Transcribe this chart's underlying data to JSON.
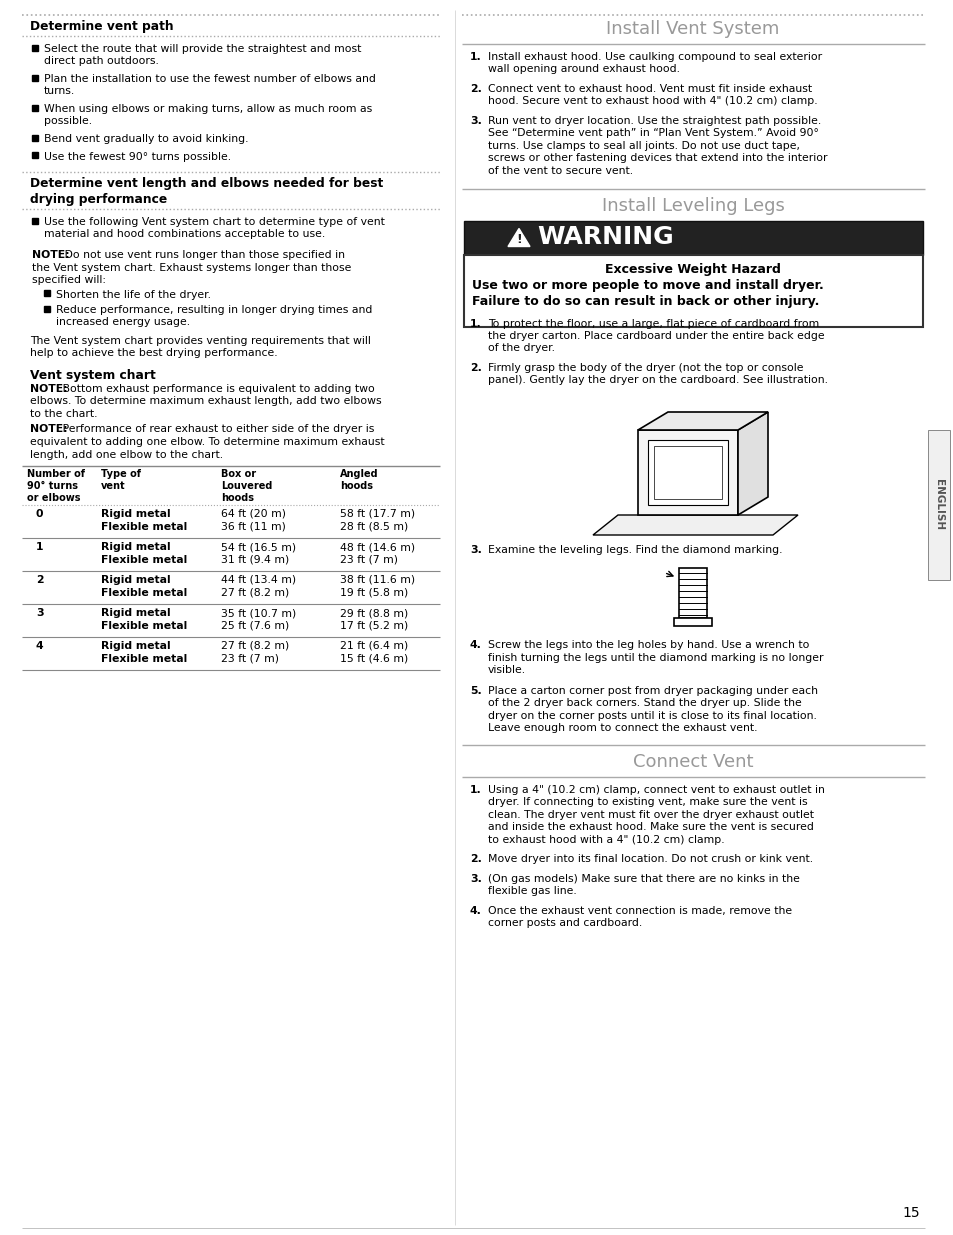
{
  "page_bg": "#ffffff",
  "page_num": "15",
  "left_col": {
    "section1_title": "Determine vent path",
    "section1_bullets": [
      "Select the route that will provide the straightest and most\ndirect path outdoors.",
      "Plan the installation to use the fewest number of elbows and\nturns.",
      "When using elbows or making turns, allow as much room as\npossible.",
      "Bend vent gradually to avoid kinking.",
      "Use the fewest 90° turns possible."
    ],
    "section2_title": "Determine vent length and elbows needed for best\ndrying performance",
    "section2_bullet": "Use the following Vent system chart to determine type of vent\nmaterial and hood combinations acceptable to use.",
    "note1_sub_bullets": [
      "Shorten the life of the dryer.",
      "Reduce performance, resulting in longer drying times and\nincreased energy usage."
    ],
    "para1": "The Vent system chart provides venting requirements that will\nhelp to achieve the best drying performance.",
    "section3_title": "Vent system chart",
    "table_headers": [
      "Number of\n90° turns\nor elbows",
      "Type of\nvent",
      "Box or\nLouvered\nhoods",
      "Angled\nhoods"
    ],
    "table_rows": [
      [
        "0",
        "Rigid metal\nFlexible metal",
        "64 ft (20 m)\n36 ft (11 m)",
        "58 ft (17.7 m)\n28 ft (8.5 m)"
      ],
      [
        "1",
        "Rigid metal\nFlexible metal",
        "54 ft (16.5 m)\n31 ft (9.4 m)",
        "48 ft (14.6 m)\n23 ft (7 m)"
      ],
      [
        "2",
        "Rigid metal\nFlexible metal",
        "44 ft (13.4 m)\n27 ft (8.2 m)",
        "38 ft (11.6 m)\n19 ft (5.8 m)"
      ],
      [
        "3",
        "Rigid metal\nFlexible metal",
        "35 ft (10.7 m)\n25 ft (7.6 m)",
        "29 ft (8.8 m)\n17 ft (5.2 m)"
      ],
      [
        "4",
        "Rigid metal\nFlexible metal",
        "27 ft (8.2 m)\n23 ft (7 m)",
        "21 ft (6.4 m)\n15 ft (4.6 m)"
      ]
    ]
  },
  "right_col": {
    "install_vent_title": "Install Vent System",
    "install_vent_steps": [
      [
        "1.",
        "Install exhaust hood. Use caulking compound to seal exterior\nwall opening around exhaust hood."
      ],
      [
        "2.",
        "Connect vent to exhaust hood. Vent must fit inside exhaust\nhood. Secure vent to exhaust hood with 4\" (10.2 cm) clamp."
      ],
      [
        "3.",
        "Run vent to dryer location. Use the straightest path possible.\nSee “Determine vent path” in “Plan Vent System.” Avoid 90°\nturns. Use clamps to seal all joints. Do not use duct tape,\nscrews or other fastening devices that extend into the interior\nof the vent to secure vent."
      ]
    ],
    "install_leveling_title": "Install Leveling Legs",
    "warning_bold1": "Excessive Weight Hazard",
    "warning_bold2": "Use two or more people to move and install dryer.",
    "warning_bold3": "Failure to do so can result in back or other injury.",
    "leveling_steps": [
      [
        "1.",
        "To protect the floor, use a large, flat piece of cardboard from\nthe dryer carton. Place cardboard under the entire back edge\nof the dryer."
      ],
      [
        "2.",
        "Firmly grasp the body of the dryer (not the top or console\npanel). Gently lay the dryer on the cardboard. See illustration."
      ]
    ],
    "step3_text": "Examine the leveling legs. Find the diamond marking.",
    "step4_text": "Screw the legs into the leg holes by hand. Use a wrench to\nfinish turning the legs until the diamond marking is no longer\nvisible.",
    "step5_text": "Place a carton corner post from dryer packaging under each\nof the 2 dryer back corners. Stand the dryer up. Slide the\ndryer on the corner posts until it is close to its final location.\nLeave enough room to connect the exhaust vent.",
    "connect_vent_title": "Connect Vent",
    "connect_steps": [
      [
        "1.",
        "Using a 4\" (10.2 cm) clamp, connect vent to exhaust outlet in\ndryer. If connecting to existing vent, make sure the vent is\nclean. The dryer vent must fit over the dryer exhaust outlet\nand inside the exhaust hood. Make sure the vent is secured\nto exhaust hood with a 4\" (10.2 cm) clamp."
      ],
      [
        "2.",
        "Move dryer into its final location. Do not crush or kink vent."
      ],
      [
        "3.",
        "(On gas models) Make sure that there are no kinks in the\nflexible gas line."
      ],
      [
        "4.",
        "Once the exhaust vent connection is made, remove the\ncorner posts and cardboard."
      ]
    ],
    "english_sidebar": "ENGLISH"
  }
}
